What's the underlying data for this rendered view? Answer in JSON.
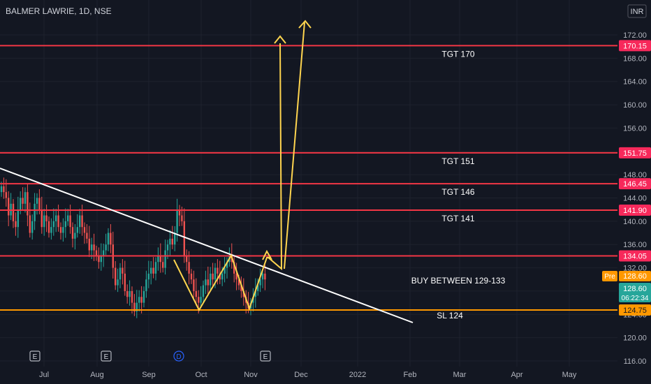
{
  "header": {
    "symbol": "BALMER LAWRIE, 1D, NSE",
    "currency": "INR"
  },
  "colors": {
    "background": "#131722",
    "grid": "#1e222d",
    "axis_text": "#b2b5be",
    "up": "#26a69a",
    "down": "#ef5350",
    "target_line": "#f23645",
    "target_label_bg": "#f7295b",
    "stoploss_line": "#ff9800",
    "trendline": "#ffffff",
    "arrow": "#ffd54f",
    "price_label_bg": "#26a69a",
    "pre_bg": "#ff9800"
  },
  "chart_data": {
    "type": "candlestick",
    "ylim": [
      115,
      175
    ],
    "yticks": [
      116,
      120,
      124,
      128,
      132,
      136,
      140,
      144,
      148,
      152,
      156,
      160,
      164,
      168,
      172
    ],
    "ytick_labels": [
      "116.00",
      "120.00",
      "124.00",
      "128.00",
      "132.00",
      "136.00",
      "140.00",
      "144.00",
      "148.00",
      "152.00",
      "156.00",
      "160.00",
      "164.00",
      "168.00",
      "172.00"
    ],
    "xaxis_labels": [
      "Jul",
      "Aug",
      "Sep",
      "Oct",
      "Nov",
      "Dec",
      "2022",
      "Feb",
      "Mar",
      "Apr",
      "May"
    ],
    "horizontal_levels": [
      {
        "value": 170.15,
        "axis_label": "170.15",
        "text": "TGT 170",
        "kind": "target"
      },
      {
        "value": 151.75,
        "axis_label": "151.75",
        "text": "TGT 151",
        "kind": "target"
      },
      {
        "value": 146.45,
        "axis_label": "146.45",
        "text": "TGT 146",
        "kind": "target"
      },
      {
        "value": 141.9,
        "axis_label": "141.90",
        "text": "TGT 141",
        "kind": "target"
      },
      {
        "value": 134.05,
        "axis_label": "134.05",
        "text": "",
        "kind": "target"
      },
      {
        "value": 124.75,
        "axis_label": "124.75",
        "text": "SL 124",
        "kind": "stoploss"
      }
    ],
    "buy_note": {
      "text": "BUY BETWEEN 129-133",
      "value": 129.8
    },
    "current_price": {
      "value": 128.6,
      "label": "128.60",
      "countdown": "06:22:34",
      "pre_label": "Pre",
      "pre_value": "128.60"
    },
    "events": [
      {
        "letter": "E",
        "date_index": 0
      },
      {
        "letter": "E",
        "date_index": 1
      },
      {
        "letter": "D",
        "date_index": 2
      },
      {
        "letter": "E",
        "date_index": 3
      }
    ],
    "closes": [
      146,
      145,
      144,
      141,
      143,
      140,
      139,
      142,
      144,
      143,
      145,
      141,
      138,
      140,
      143,
      144,
      142,
      139,
      141,
      140,
      138,
      139,
      140,
      141,
      139,
      138,
      139,
      140,
      141,
      139,
      137,
      138,
      139,
      141,
      139,
      138,
      137,
      135,
      136,
      135,
      134,
      133,
      134,
      135,
      136,
      138,
      136,
      132,
      129,
      130,
      132,
      131,
      128,
      127,
      128,
      126,
      124.5,
      126,
      127,
      126,
      128,
      130,
      131,
      132,
      131,
      133,
      134,
      133,
      132,
      135,
      136,
      137,
      136,
      138,
      142,
      141,
      140,
      134,
      133,
      131,
      130,
      128,
      127,
      126,
      127,
      129,
      130,
      129,
      131,
      130,
      132,
      131,
      130,
      131,
      132,
      133,
      134,
      133,
      131,
      130,
      129,
      128,
      127,
      126,
      125,
      126,
      127,
      128,
      129,
      130,
      131,
      130
    ]
  }
}
